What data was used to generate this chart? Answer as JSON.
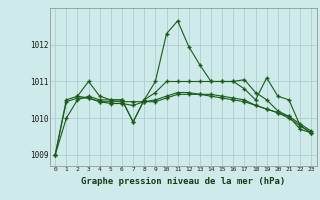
{
  "title": "",
  "xlabel": "Graphe pression niveau de la mer (hPa)",
  "bg_color": "#ceeaea",
  "grid_color": "#aecece",
  "line_color": "#1a5c1a",
  "xlim": [
    -0.5,
    23.5
  ],
  "ylim": [
    1008.7,
    1013.0
  ],
  "yticks": [
    1009,
    1010,
    1011,
    1012
  ],
  "xticks": [
    0,
    1,
    2,
    3,
    4,
    5,
    6,
    7,
    8,
    9,
    10,
    11,
    12,
    13,
    14,
    15,
    16,
    17,
    18,
    19,
    20,
    21,
    22,
    23
  ],
  "series": [
    {
      "x": [
        0,
        1,
        2,
        3,
        4,
        5,
        6,
        7,
        8,
        9,
        10,
        11,
        12,
        13,
        14,
        15,
        16,
        17,
        18,
        19,
        20,
        21,
        22,
        23
      ],
      "y": [
        1009.0,
        1010.0,
        1010.5,
        1010.6,
        1010.5,
        1010.5,
        1010.5,
        1009.9,
        1010.5,
        1011.0,
        1012.3,
        1012.65,
        1011.95,
        1011.45,
        1011.0,
        1011.0,
        1011.0,
        1011.05,
        1010.7,
        1010.5,
        1010.2,
        1010.05,
        1009.7,
        1009.6
      ]
    },
    {
      "x": [
        0,
        1,
        2,
        3,
        4,
        5,
        6,
        7,
        8,
        9,
        10,
        11,
        12,
        13,
        14,
        15,
        16,
        17,
        18,
        19,
        20,
        21,
        22,
        23
      ],
      "y": [
        1009.0,
        1010.5,
        1010.6,
        1011.0,
        1010.6,
        1010.5,
        1010.5,
        1009.9,
        1010.5,
        1010.7,
        1011.0,
        1011.0,
        1011.0,
        1011.0,
        1011.0,
        1011.0,
        1011.0,
        1010.8,
        1010.5,
        1011.1,
        1010.6,
        1010.5,
        1009.8,
        1009.6
      ]
    },
    {
      "x": [
        2,
        3,
        4,
        5,
        6,
        7,
        8,
        9,
        10,
        11,
        12,
        13,
        14,
        15,
        16,
        17,
        18,
        19,
        20,
        21,
        22,
        23
      ],
      "y": [
        1010.6,
        1010.55,
        1010.45,
        1010.4,
        1010.4,
        1010.35,
        1010.45,
        1010.45,
        1010.55,
        1010.65,
        1010.65,
        1010.65,
        1010.6,
        1010.55,
        1010.5,
        1010.45,
        1010.35,
        1010.25,
        1010.15,
        1010.05,
        1009.85,
        1009.65
      ]
    },
    {
      "x": [
        0,
        1,
        2,
        3,
        4,
        5,
        6,
        7,
        8,
        9,
        10,
        11,
        12,
        13,
        14,
        15,
        16,
        17,
        18,
        19,
        20,
        21,
        22,
        23
      ],
      "y": [
        1009.0,
        1010.45,
        1010.55,
        1010.55,
        1010.45,
        1010.45,
        1010.45,
        1010.45,
        1010.45,
        1010.5,
        1010.6,
        1010.7,
        1010.7,
        1010.65,
        1010.65,
        1010.6,
        1010.55,
        1010.5,
        1010.35,
        1010.25,
        1010.15,
        1010.0,
        1009.8,
        1009.6
      ]
    }
  ]
}
